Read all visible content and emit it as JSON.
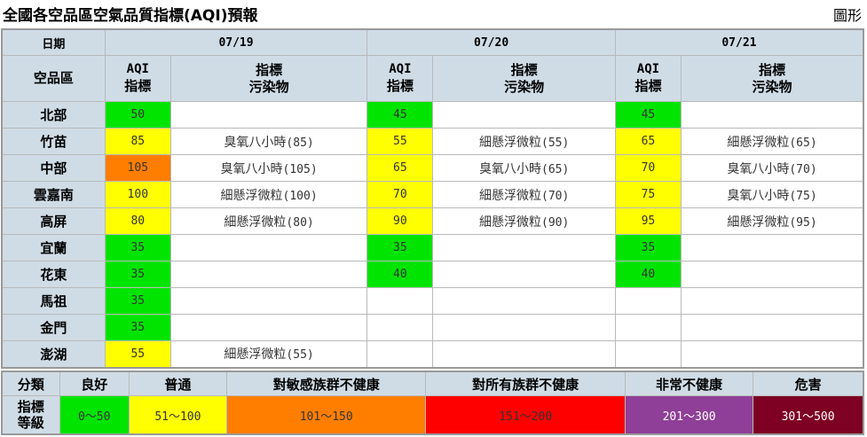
{
  "title": "全國各空品區空氣品質指標(AQI)預報",
  "chart_link_label": "圖形",
  "colors": {
    "good": "#00e400",
    "moderate": "#ffff00",
    "usg": "#ff7e00",
    "unhealthy": "#ff0000",
    "very_unhealthy": "#8f3f97",
    "hazardous": "#7e0023",
    "header": "#cfdce6"
  },
  "header": {
    "date_label": "日期",
    "region_label": "空品區",
    "aqi_line1": "AQI",
    "aqi_line2": "指標",
    "pol_line1": "指標",
    "pol_line2": "污染物",
    "dates": [
      "07/19",
      "07/20",
      "07/21"
    ]
  },
  "rows": [
    {
      "region": "北部",
      "days": [
        {
          "aqi": "50",
          "pol": "",
          "val": "",
          "level": "g"
        },
        {
          "aqi": "45",
          "pol": "",
          "val": "",
          "level": "g"
        },
        {
          "aqi": "45",
          "pol": "",
          "val": "",
          "level": "g"
        }
      ]
    },
    {
      "region": "竹苗",
      "days": [
        {
          "aqi": "85",
          "pol": "臭氧八小時",
          "val": "(85)",
          "level": "y"
        },
        {
          "aqi": "55",
          "pol": "細懸浮微粒",
          "val": "(55)",
          "level": "y"
        },
        {
          "aqi": "65",
          "pol": "細懸浮微粒",
          "val": "(65)",
          "level": "y"
        }
      ]
    },
    {
      "region": "中部",
      "days": [
        {
          "aqi": "105",
          "pol": "臭氧八小時",
          "val": "(105)",
          "level": "o"
        },
        {
          "aqi": "65",
          "pol": "臭氧八小時",
          "val": "(65)",
          "level": "y"
        },
        {
          "aqi": "70",
          "pol": "臭氧八小時",
          "val": "(70)",
          "level": "y"
        }
      ]
    },
    {
      "region": "雲嘉南",
      "days": [
        {
          "aqi": "100",
          "pol": "細懸浮微粒",
          "val": "(100)",
          "level": "y"
        },
        {
          "aqi": "70",
          "pol": "細懸浮微粒",
          "val": "(70)",
          "level": "y"
        },
        {
          "aqi": "75",
          "pol": "臭氧八小時",
          "val": "(75)",
          "level": "y"
        }
      ]
    },
    {
      "region": "高屏",
      "days": [
        {
          "aqi": "80",
          "pol": "細懸浮微粒",
          "val": "(80)",
          "level": "y"
        },
        {
          "aqi": "90",
          "pol": "細懸浮微粒",
          "val": "(90)",
          "level": "y"
        },
        {
          "aqi": "95",
          "pol": "細懸浮微粒",
          "val": "(95)",
          "level": "y"
        }
      ]
    },
    {
      "region": "宜蘭",
      "days": [
        {
          "aqi": "35",
          "pol": "",
          "val": "",
          "level": "g"
        },
        {
          "aqi": "35",
          "pol": "",
          "val": "",
          "level": "g"
        },
        {
          "aqi": "35",
          "pol": "",
          "val": "",
          "level": "g"
        }
      ]
    },
    {
      "region": "花東",
      "days": [
        {
          "aqi": "35",
          "pol": "",
          "val": "",
          "level": "g"
        },
        {
          "aqi": "40",
          "pol": "",
          "val": "",
          "level": "g"
        },
        {
          "aqi": "40",
          "pol": "",
          "val": "",
          "level": "g"
        }
      ]
    },
    {
      "region": "馬祖",
      "days": [
        {
          "aqi": "35",
          "pol": "",
          "val": "",
          "level": "g"
        },
        {
          "aqi": "",
          "pol": "",
          "val": "",
          "level": ""
        },
        {
          "aqi": "",
          "pol": "",
          "val": "",
          "level": ""
        }
      ]
    },
    {
      "region": "金門",
      "days": [
        {
          "aqi": "35",
          "pol": "",
          "val": "",
          "level": "g"
        },
        {
          "aqi": "",
          "pol": "",
          "val": "",
          "level": ""
        },
        {
          "aqi": "",
          "pol": "",
          "val": "",
          "level": ""
        }
      ]
    },
    {
      "region": "澎湖",
      "days": [
        {
          "aqi": "55",
          "pol": "細懸浮微粒",
          "val": "(55)",
          "level": "y"
        },
        {
          "aqi": "",
          "pol": "",
          "val": "",
          "level": ""
        },
        {
          "aqi": "",
          "pol": "",
          "val": "",
          "level": ""
        }
      ]
    }
  ],
  "legend": {
    "category_label": "分類",
    "level_line1": "指標",
    "level_line2": "等級",
    "categories": [
      {
        "name": "良好",
        "range": "0～50",
        "level": "g"
      },
      {
        "name": "普通",
        "range": "51～100",
        "level": "y"
      },
      {
        "name": "對敏感族群不健康",
        "range": "101～150",
        "level": "o"
      },
      {
        "name": "對所有族群不健康",
        "range": "151～200",
        "level": "r"
      },
      {
        "name": "非常不健康",
        "range": "201～300",
        "level": "p"
      },
      {
        "name": "危害",
        "range": "301～500",
        "level": "m"
      }
    ]
  }
}
